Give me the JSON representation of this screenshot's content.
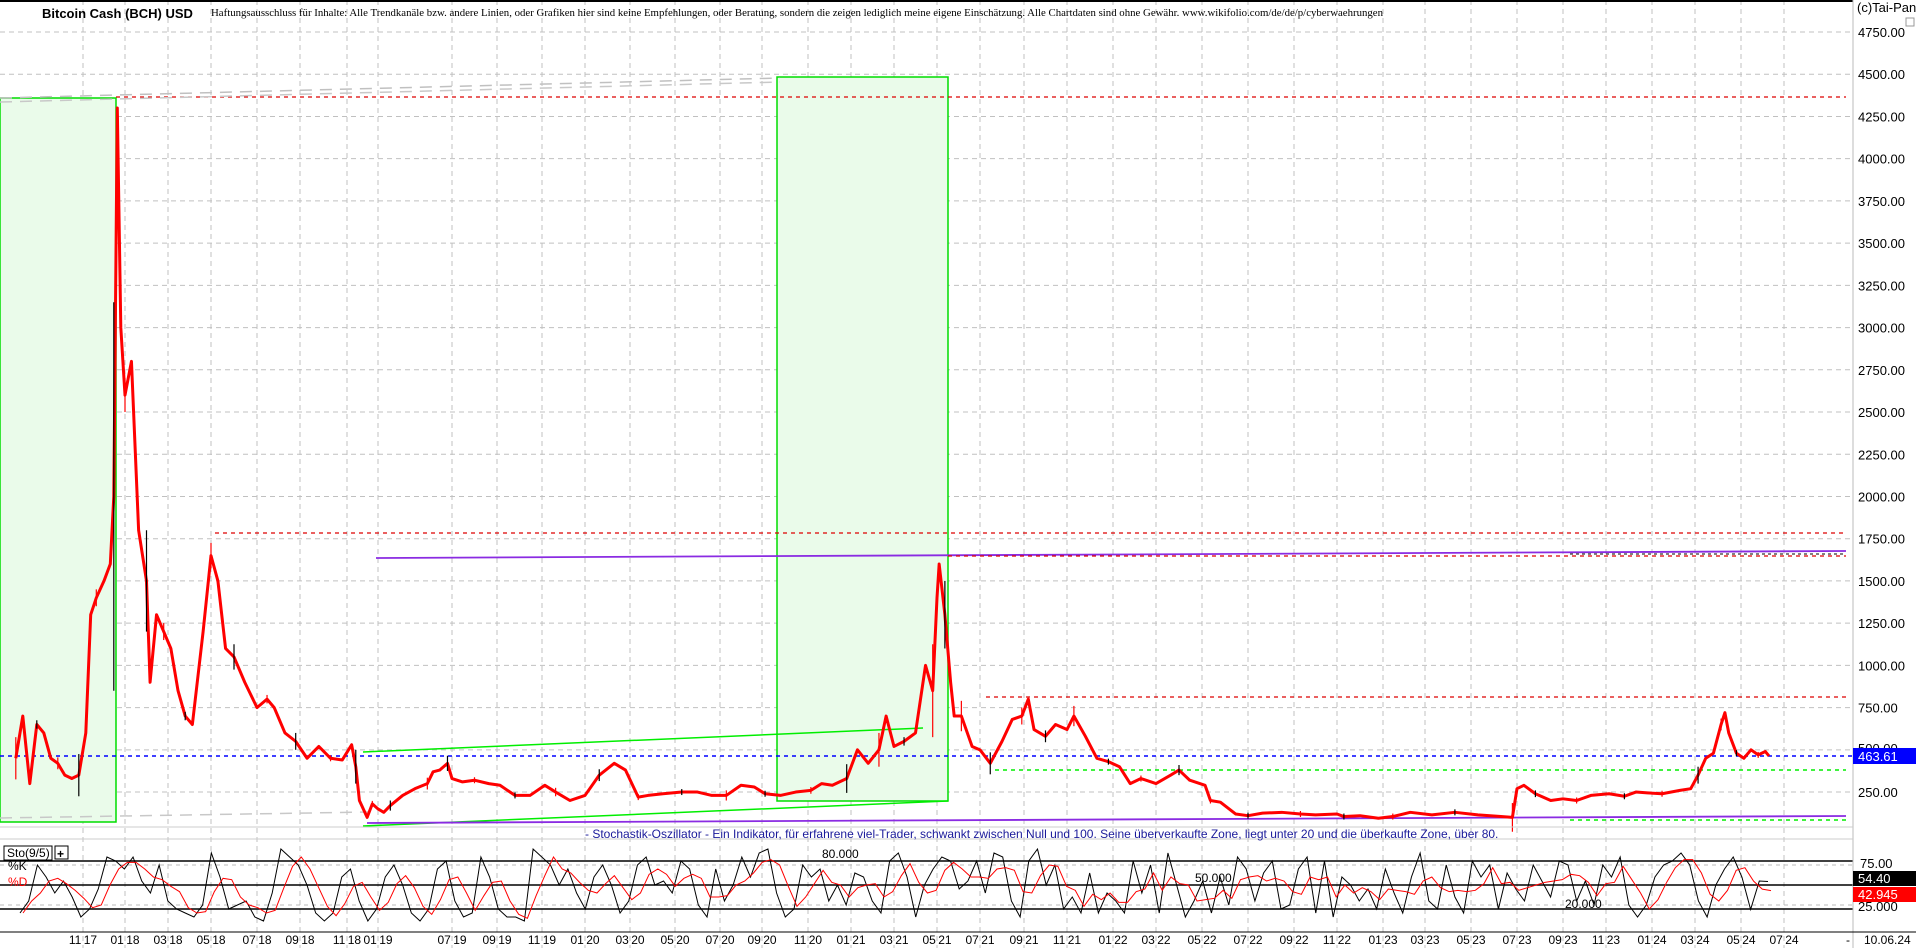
{
  "header": {
    "title": "Bitcoin Cash (BCH) USD",
    "disclaimer": "Haftungsausschluss für Inhalte: Alle Trendkanäle bzw. andere Linien, oder Grafiken hier sind keine Empfehlungen, oder Beratung, sondern die zeigen lediglich meine eigene Einschätzung. Alle Chartdaten sind ohne Gewähr.  www.wikifolio.com/de/de/p/cyberwaehrungen",
    "copyright": "(c)Tai-Pan"
  },
  "colors": {
    "price_down": "#ff0000",
    "price_up": "#000000",
    "last_price_bg": "#0000ff",
    "zone_fill": "#eafbea",
    "zone_border": "#00dd00",
    "resistance": "#dd0000",
    "channel_purple": "#8a2be2",
    "support_green": "#00ee00",
    "k_line": "#000000",
    "d_line": "#ff0000"
  },
  "chart_data": [
    {
      "type": "line",
      "title": "Bitcoin Cash (BCH) USD",
      "y_axis": {
        "ticks": [
          "4750.00",
          "4500.00",
          "4250.00",
          "4000.00",
          "3750.00",
          "3500.00",
          "3250.00",
          "3000.00",
          "2750.00",
          "2500.00",
          "2250.00",
          "2000.00",
          "1750.00",
          "1500.00",
          "1250.00",
          "1000.00",
          "750.00",
          "500.00",
          "250.00"
        ],
        "range": [
          0,
          4850
        ],
        "position": "right",
        "grid": true
      },
      "x_axis": {
        "ticks": [
          "11 17",
          "01 18",
          "03 18",
          "05 18",
          "07 18",
          "09 18",
          "11 18",
          "01 19",
          "07 19",
          "09 19",
          "11 19",
          "01 20",
          "03 20",
          "05 20",
          "07 20",
          "09 20",
          "11 20",
          "01 21",
          "03 21",
          "05 21",
          "07 21",
          "09 21",
          "11 21",
          "01 22",
          "03 22",
          "05 22",
          "07 22",
          "09 22",
          "11 22",
          "01 23",
          "03 23",
          "05 23",
          "07 23",
          "09 23",
          "11 23",
          "01 24",
          "03 24",
          "05 24",
          "07 24"
        ],
        "end_marker": "-",
        "last_date": "10.06.24",
        "grid": true
      },
      "last_price": "463.61",
      "series": [
        {
          "x": [
            "2017-07-25",
            "2017-08-05",
            "2017-08-15",
            "2017-08-25",
            "2017-09-05",
            "2017-09-15",
            "2017-09-25",
            "2017-10-05",
            "2017-10-15",
            "2017-10-25",
            "2017-11-05",
            "2017-11-12",
            "2017-11-20",
            "2017-12-01",
            "2017-12-10",
            "2017-12-15",
            "2017-12-20",
            "2017-12-25",
            "2018-01-01",
            "2018-01-10",
            "2018-01-20",
            "2018-02-01",
            "2018-02-06",
            "2018-02-15",
            "2018-02-25",
            "2018-03-05",
            "2018-03-15",
            "2018-03-25",
            "2018-04-05",
            "2018-04-20",
            "2018-05-01",
            "2018-05-10",
            "2018-05-20",
            "2018-06-01",
            "2018-06-15",
            "2018-07-01",
            "2018-07-15",
            "2018-07-25",
            "2018-08-10",
            "2018-08-25",
            "2018-09-10",
            "2018-09-25",
            "2018-10-10",
            "2018-10-25",
            "2018-11-10",
            "2018-11-18",
            "2018-11-25",
            "2018-12-10",
            "2018-12-20",
            "2019-01-01",
            "2019-01-15",
            "2019-02-01",
            "2019-03-01",
            "2019-04-01",
            "2019-05-01",
            "2019-05-15",
            "2019-06-01",
            "2019-06-20",
            "2019-07-01",
            "2019-07-15",
            "2019-08-01",
            "2019-08-20",
            "2019-09-05",
            "2019-09-25",
            "2019-10-15",
            "2019-11-05",
            "2019-11-20",
            "2019-12-10",
            "2020-01-01",
            "2020-01-20",
            "2020-02-10",
            "2020-02-25",
            "2020-03-12",
            "2020-03-25",
            "2020-04-15",
            "2020-05-10",
            "2020-06-01",
            "2020-06-20",
            "2020-07-10",
            "2020-08-01",
            "2020-08-20",
            "2020-09-05",
            "2020-09-25",
            "2020-10-15",
            "2020-11-05",
            "2020-11-20",
            "2020-12-05",
            "2020-12-25",
            "2021-01-10",
            "2021-01-25",
            "2021-02-10",
            "2021-02-20",
            "2021-03-01",
            "2021-03-15",
            "2021-04-01",
            "2021-04-15",
            "2021-04-25",
            "2021-05-01",
            "2021-05-04",
            "2021-05-12",
            "2021-05-20",
            "2021-05-25",
            "2021-06-05",
            "2021-06-20",
            "2021-07-01",
            "2021-07-15",
            "2021-08-01",
            "2021-08-15",
            "2021-08-28",
            "2021-09-07",
            "2021-09-15",
            "2021-10-01",
            "2021-10-15",
            "2021-11-01",
            "2021-11-10",
            "2021-11-25",
            "2021-12-10",
            "2021-12-25",
            "2022-01-10",
            "2022-01-25",
            "2022-02-10",
            "2022-03-01",
            "2022-03-20",
            "2022-04-01",
            "2022-04-15",
            "2022-05-05",
            "2022-05-12",
            "2022-05-25",
            "2022-06-15",
            "2022-07-01",
            "2022-07-20",
            "2022-08-15",
            "2022-09-10",
            "2022-10-01",
            "2022-11-01",
            "2022-11-10",
            "2022-12-01",
            "2022-12-25",
            "2023-01-15",
            "2023-02-10",
            "2023-03-10",
            "2023-04-10",
            "2023-05-10",
            "2023-06-10",
            "2023-06-25",
            "2023-07-01",
            "2023-07-10",
            "2023-07-25",
            "2023-08-15",
            "2023-09-01",
            "2023-09-20",
            "2023-10-10",
            "2023-11-05",
            "2023-11-25",
            "2023-12-10",
            "2023-12-25",
            "2024-01-15",
            "2024-02-10",
            "2024-02-25",
            "2024-03-05",
            "2024-03-15",
            "2024-03-25",
            "2024-04-05",
            "2024-04-10",
            "2024-04-15",
            "2024-04-25",
            "2024-05-05",
            "2024-05-15",
            "2024-05-25",
            "2024-06-05",
            "2024-06-10"
          ],
          "y": [
            450,
            700,
            300,
            650,
            600,
            450,
            420,
            350,
            330,
            350,
            600,
            1300,
            1400,
            1500,
            1600,
            2000,
            4300,
            3000,
            2600,
            2800,
            1800,
            1500,
            900,
            1300,
            1200,
            1100,
            850,
            700,
            650,
            1200,
            1650,
            1500,
            1100,
            1050,
            900,
            750,
            800,
            750,
            600,
            550,
            450,
            520,
            450,
            440,
            530,
            400,
            200,
            100,
            180,
            150,
            130,
            170,
            230,
            270,
            300,
            370,
            380,
            420,
            330,
            310,
            320,
            300,
            290,
            230,
            230,
            290,
            250,
            200,
            230,
            350,
            420,
            380,
            220,
            230,
            240,
            250,
            250,
            230,
            230,
            290,
            280,
            240,
            230,
            250,
            260,
            300,
            290,
            330,
            500,
            420,
            500,
            700,
            520,
            550,
            600,
            1000,
            850,
            1400,
            1600,
            1300,
            900,
            700,
            700,
            520,
            500,
            420,
            550,
            680,
            700,
            800,
            620,
            580,
            650,
            620,
            700,
            580,
            450,
            430,
            400,
            300,
            330,
            300,
            350,
            380,
            320,
            290,
            200,
            190,
            120,
            110,
            125,
            130,
            120,
            115,
            120,
            105,
            110,
            95,
            105,
            130,
            115,
            130,
            115,
            105,
            100,
            270,
            290,
            240,
            200,
            210,
            200,
            230,
            240,
            225,
            250,
            245,
            240,
            260,
            270,
            350,
            450,
            480,
            650,
            720,
            600,
            480,
            450,
            500,
            470,
            490,
            464
          ]
        }
      ]
    },
    {
      "type": "line",
      "title": "Sto(9/5)",
      "button": "+",
      "description": "- Stochastik-Oszillator - Ein Indikator, für erfahrene viel-Trader, schwankt zwischen Null und 100. Seine überverkaufte Zone, liegt unter 20 und die überkaufte Zone, über 80.",
      "legend": [
        "%K",
        "%D"
      ],
      "y_axis": {
        "ticks": [
          "75.00",
          "25.000"
        ],
        "range": [
          0,
          100
        ]
      },
      "levels": [
        {
          "value": 80,
          "label": "80.000"
        },
        {
          "value": 50,
          "label": "50.000"
        },
        {
          "value": 20,
          "label": "20.000"
        }
      ],
      "last_k": "54.40",
      "last_d": "42.945",
      "series": [
        {
          "name": "%K",
          "values": [
            15,
            30,
            75,
            60,
            40,
            55,
            35,
            10,
            20,
            45,
            85,
            80,
            70,
            85,
            55,
            40,
            75,
            30,
            20,
            15,
            10,
            25,
            90,
            60,
            20,
            25,
            30,
            10,
            5,
            40,
            95,
            85,
            75,
            50,
            15,
            5,
            15,
            60,
            70,
            30,
            5,
            20,
            60,
            75,
            50,
            15,
            5,
            20,
            70,
            80,
            30,
            10,
            15,
            85,
            60,
            20,
            10,
            10,
            5,
            95,
            85,
            75,
            50,
            70,
            40,
            20,
            60,
            75,
            50,
            15,
            30,
            75,
            85,
            50,
            55,
            40,
            80,
            70,
            25,
            10,
            70,
            30,
            50,
            85,
            60,
            90,
            95,
            40,
            10,
            20,
            75,
            60,
            70,
            30,
            50,
            25,
            65,
            60,
            30,
            15,
            80,
            90,
            60,
            10,
            50,
            70,
            85,
            80,
            45,
            55,
            80,
            40,
            90,
            85,
            30,
            10,
            80,
            95,
            50,
            75,
            20,
            35,
            15,
            65,
            15,
            40,
            30,
            15,
            80,
            40,
            75,
            15,
            90,
            50,
            10,
            30,
            55,
            15,
            60,
            25,
            85,
            70,
            30,
            65,
            80,
            20,
            25,
            70,
            85,
            15,
            80,
            10,
            60,
            50,
            30,
            45,
            20,
            70,
            40,
            15,
            60,
            90,
            30,
            20,
            75,
            35,
            15,
            80,
            60,
            75,
            20,
            65,
            45,
            30,
            75,
            55,
            35,
            80,
            75,
            30,
            55,
            25,
            75,
            60,
            85,
            25,
            10,
            25,
            60,
            75,
            80,
            90,
            75,
            30,
            10,
            50,
            70,
            85,
            60,
            19.5,
            54.94,
            54.4
          ]
        }
      ]
    }
  ]
}
